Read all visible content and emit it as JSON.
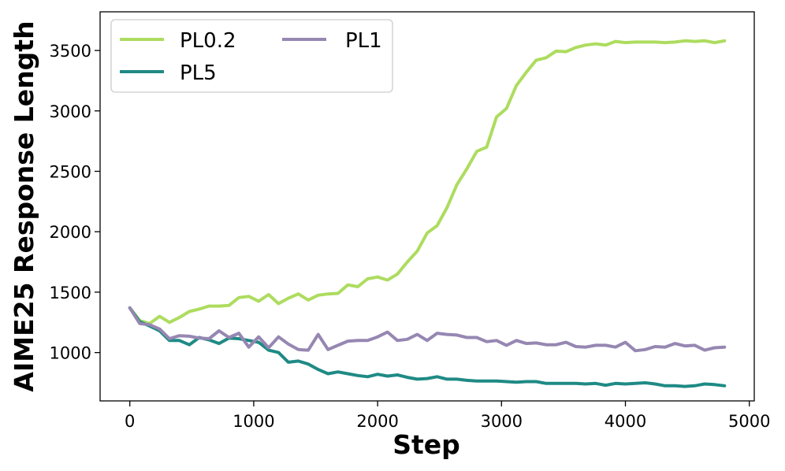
{
  "chart_data": {
    "type": "line",
    "title": "",
    "xlabel": "Step",
    "ylabel": "AIME25 Response Length",
    "xlim": [
      -240,
      5040
    ],
    "ylim": [
      600,
      3820
    ],
    "xticks": [
      0,
      1000,
      2000,
      3000,
      4000,
      5000
    ],
    "yticks": [
      1000,
      1500,
      2000,
      2500,
      3000,
      3500
    ],
    "grid": false,
    "legend_position": "top-left",
    "series": [
      {
        "name": "PL0.2",
        "color": "#addc5f",
        "x": [
          0,
          80,
          160,
          240,
          320,
          400,
          480,
          560,
          640,
          720,
          800,
          880,
          960,
          1040,
          1120,
          1200,
          1280,
          1360,
          1440,
          1520,
          1600,
          1680,
          1760,
          1840,
          1920,
          2000,
          2080,
          2160,
          2240,
          2320,
          2400,
          2480,
          2560,
          2640,
          2720,
          2800,
          2880,
          2960,
          3040,
          3120,
          3200,
          3280,
          3360,
          3440,
          3520,
          3600,
          3680,
          3760,
          3840,
          3920,
          4000,
          4080,
          4160,
          4240,
          4320,
          4400,
          4480,
          4560,
          4640,
          4720,
          4800
        ],
        "values": [
          1370,
          1265,
          1240,
          1300,
          1250,
          1290,
          1340,
          1360,
          1385,
          1385,
          1390,
          1455,
          1465,
          1425,
          1480,
          1405,
          1450,
          1485,
          1435,
          1475,
          1485,
          1490,
          1560,
          1545,
          1610,
          1625,
          1600,
          1650,
          1750,
          1840,
          1990,
          2050,
          2200,
          2390,
          2520,
          2665,
          2700,
          2950,
          3020,
          3210,
          3320,
          3420,
          3440,
          3495,
          3490,
          3525,
          3545,
          3555,
          3545,
          3575,
          3565,
          3570,
          3570,
          3570,
          3565,
          3570,
          3580,
          3575,
          3580,
          3565,
          3580
        ]
      },
      {
        "name": "PL5",
        "color": "#1f8a85",
        "x": [
          0,
          80,
          160,
          240,
          320,
          400,
          480,
          560,
          640,
          720,
          800,
          880,
          960,
          1040,
          1120,
          1200,
          1280,
          1360,
          1440,
          1520,
          1600,
          1680,
          1760,
          1840,
          1920,
          2000,
          2080,
          2160,
          2240,
          2320,
          2400,
          2480,
          2560,
          2640,
          2720,
          2800,
          2880,
          2960,
          3040,
          3120,
          3200,
          3280,
          3360,
          3440,
          3520,
          3600,
          3680,
          3760,
          3840,
          3920,
          4000,
          4080,
          4160,
          4240,
          4320,
          4400,
          4480,
          4560,
          4640,
          4720,
          4800
        ],
        "values": [
          1370,
          1255,
          1220,
          1180,
          1100,
          1100,
          1065,
          1125,
          1105,
          1075,
          1120,
          1115,
          1100,
          1085,
          1020,
          1000,
          920,
          930,
          905,
          860,
          825,
          840,
          825,
          810,
          800,
          820,
          805,
          815,
          795,
          780,
          785,
          800,
          780,
          780,
          770,
          765,
          765,
          765,
          760,
          755,
          760,
          760,
          745,
          745,
          745,
          745,
          740,
          745,
          730,
          745,
          740,
          745,
          750,
          740,
          725,
          725,
          720,
          725,
          740,
          735,
          725
        ]
      },
      {
        "name": "PL1",
        "color": "#9687b2",
        "x": [
          0,
          80,
          160,
          240,
          320,
          400,
          480,
          560,
          640,
          720,
          800,
          880,
          960,
          1040,
          1120,
          1200,
          1280,
          1360,
          1440,
          1520,
          1600,
          1680,
          1760,
          1840,
          1920,
          2000,
          2080,
          2160,
          2240,
          2320,
          2400,
          2480,
          2560,
          2640,
          2720,
          2800,
          2880,
          2960,
          3040,
          3120,
          3200,
          3280,
          3360,
          3440,
          3520,
          3600,
          3680,
          3760,
          3840,
          3920,
          4000,
          4080,
          4160,
          4240,
          4320,
          4400,
          4480,
          4560,
          4640,
          4720,
          4800
        ],
        "values": [
          1370,
          1240,
          1230,
          1195,
          1115,
          1140,
          1135,
          1120,
          1115,
          1180,
          1125,
          1160,
          1045,
          1130,
          1040,
          1130,
          1070,
          1025,
          1020,
          1150,
          1025,
          1060,
          1095,
          1100,
          1100,
          1130,
          1170,
          1100,
          1110,
          1150,
          1100,
          1160,
          1150,
          1145,
          1125,
          1125,
          1090,
          1100,
          1060,
          1100,
          1075,
          1080,
          1065,
          1065,
          1085,
          1050,
          1045,
          1060,
          1060,
          1045,
          1085,
          1015,
          1025,
          1050,
          1045,
          1075,
          1055,
          1060,
          1020,
          1040,
          1045
        ]
      }
    ]
  }
}
